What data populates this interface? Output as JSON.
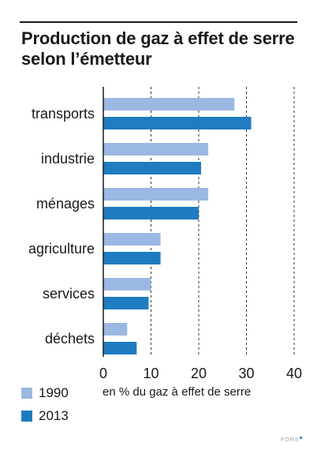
{
  "chart_data": {
    "type": "bar",
    "orientation": "horizontal",
    "title": "Production de gaz à effet de serre selon l’émetteur",
    "categories": [
      "transports",
      "industrie",
      "ménages",
      "agriculture",
      "services",
      "déchets"
    ],
    "series": [
      {
        "name": "1990",
        "color": "#9bb8e2",
        "values": [
          27.5,
          22,
          22,
          12,
          10,
          5
        ]
      },
      {
        "name": "2013",
        "color": "#1f7cc1",
        "values": [
          31,
          20.5,
          20,
          12,
          9.5,
          7
        ]
      }
    ],
    "xlabel": "en % du gaz à effet de serre",
    "xlim": [
      0,
      40
    ],
    "xticks": [
      "0",
      "10",
      "20",
      "30",
      "40"
    ],
    "grid": "dashed vertical lines at 10, 20, 30, 40",
    "legend_position": "bottom-left"
  },
  "footer": {
    "brand": "FORS",
    "dot_color": "#1f7cc1"
  }
}
